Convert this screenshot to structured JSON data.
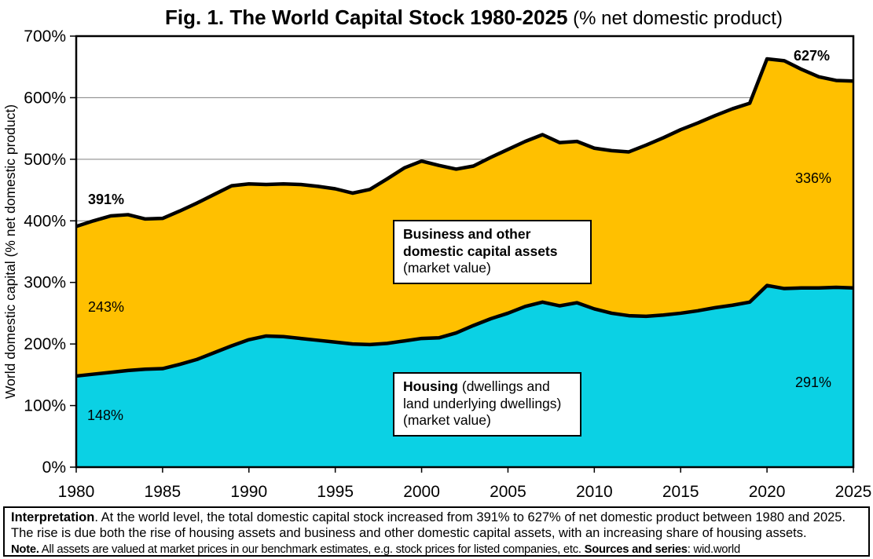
{
  "title": {
    "bold": "Fig. 1. The World Capital Stock 1980-2025",
    "normal": " (% net domestic product)"
  },
  "annotations": {
    "total_start": "391%",
    "total_end": "627%",
    "business_start": "243%",
    "business_end": "336%",
    "housing_start": "148%",
    "housing_end": "291%"
  },
  "boxes": {
    "business": {
      "title_bold": "Business and other domestic capital assets",
      "title_rest": "",
      "subtitle": "(market value)"
    },
    "housing": {
      "title_bold": "Housing",
      "title_rest": " (dwellings and land underlying dwellings)",
      "subtitle": "(market value)"
    }
  },
  "footer": {
    "line1_bold": "Interpretation",
    "line1_rest": ". At the world level, the total domestic capital stock increased from 391% to 627% of net domestic product between 1980 and 2025.",
    "line2": "The rise is due both the rise of housing assets and business and other domestic capital assets, with an increasing share of housing assets.",
    "line3_bold1": "Note.",
    "line3_text1": " All assets are valued at market prices in our benchmark estimates, e.g. stock prices for listed companies, etc. ",
    "line3_bold2": "Sources and series",
    "line3_text2": ": wid.world"
  },
  "chart_data": {
    "type": "area",
    "stacked": true,
    "title": "Fig. 1. The World Capital Stock 1980-2025 (% net domestic product)",
    "ylabel": "World domestic capital (% net domestic product)",
    "ylim": [
      0,
      700
    ],
    "ytick_values": [
      0,
      100,
      200,
      300,
      400,
      500,
      600,
      700
    ],
    "ytick_suffix": "%",
    "grid": "horizontal",
    "grid_color": "#808080",
    "legend_position": "labels-inside-plot",
    "x": [
      1980,
      1981,
      1982,
      1983,
      1984,
      1985,
      1986,
      1987,
      1988,
      1989,
      1990,
      1991,
      1992,
      1993,
      1994,
      1995,
      1996,
      1997,
      1998,
      1999,
      2000,
      2001,
      2002,
      2003,
      2004,
      2005,
      2006,
      2007,
      2008,
      2009,
      2010,
      2011,
      2012,
      2013,
      2014,
      2015,
      2016,
      2017,
      2018,
      2019,
      2020,
      2021,
      2022,
      2023,
      2024,
      2025
    ],
    "xtick_labels": [
      "1980",
      "1985",
      "1990",
      "1995",
      "2000",
      "2005",
      "2010",
      "2015",
      "2020",
      "2025"
    ],
    "series": [
      {
        "name": "Housing (dwellings and land underlying dwellings) (market value)",
        "color": "#0BD1E4",
        "values": [
          148,
          151,
          154,
          157,
          159,
          160,
          167,
          175,
          186,
          197,
          207,
          213,
          212,
          209,
          206,
          203,
          200,
          199,
          201,
          205,
          209,
          210,
          218,
          230,
          241,
          250,
          261,
          268,
          262,
          267,
          257,
          250,
          246,
          245,
          247,
          250,
          254,
          259,
          263,
          268,
          295,
          290,
          291,
          291,
          292,
          291
        ]
      },
      {
        "name": "Business and other domestic capital assets (market value)",
        "color": "#FFC000",
        "values": [
          243,
          249,
          254,
          253,
          244,
          244,
          249,
          254,
          257,
          260,
          253,
          246,
          248,
          250,
          250,
          249,
          245,
          252,
          267,
          281,
          288,
          280,
          266,
          259,
          262,
          266,
          268,
          272,
          265,
          262,
          261,
          264,
          266,
          278,
          288,
          298,
          305,
          312,
          319,
          323,
          368,
          370,
          355,
          343,
          336,
          336
        ]
      }
    ],
    "totals": [
      391,
      400,
      408,
      410,
      403,
      404,
      416,
      429,
      443,
      457,
      460,
      459,
      460,
      459,
      456,
      452,
      445,
      451,
      468,
      486,
      497,
      490,
      484,
      489,
      503,
      516,
      529,
      540,
      527,
      529,
      518,
      514,
      512,
      523,
      535,
      548,
      559,
      571,
      582,
      591,
      663,
      660,
      646,
      634,
      628,
      627
    ],
    "line_color": "#000000",
    "line_width": 4.5
  }
}
